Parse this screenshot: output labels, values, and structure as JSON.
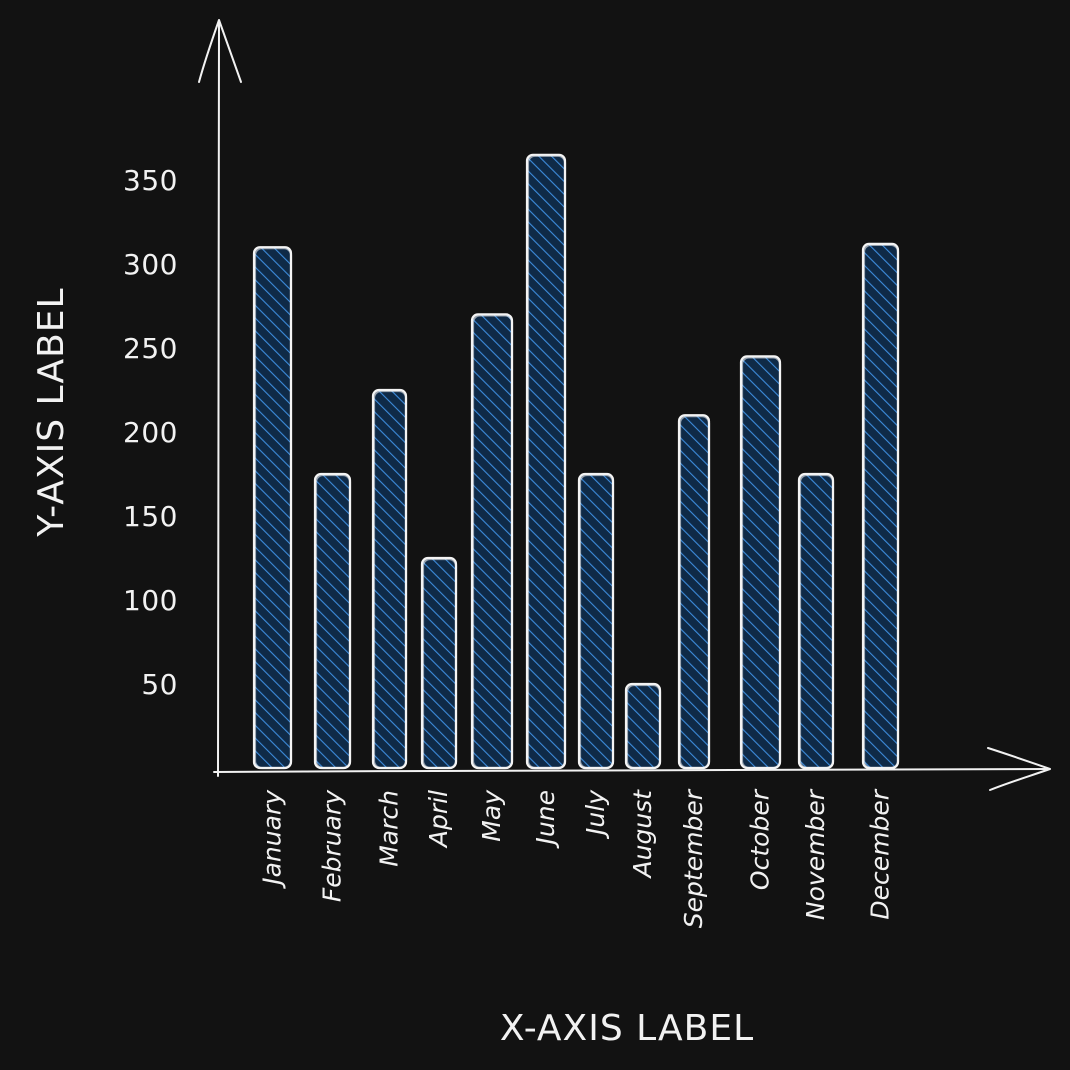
{
  "chart_data": {
    "type": "bar",
    "categories": [
      "January",
      "February",
      "March",
      "April",
      "May",
      "June",
      "July",
      "August",
      "September",
      "October",
      "November",
      "December"
    ],
    "values": [
      310,
      175,
      225,
      125,
      270,
      365,
      175,
      50,
      210,
      245,
      175,
      312
    ],
    "title": "",
    "xlabel": "X-AXIS LABEL",
    "ylabel": "Y-AXIS LABEL",
    "yticks": [
      50,
      100,
      150,
      200,
      250,
      300,
      350
    ],
    "ylim": [
      0,
      400
    ],
    "grid": false,
    "legend": "none",
    "colors": {
      "background": "#121212",
      "bar_hatch": "#3d8cdc",
      "bar_fill": "#0f2a47",
      "outline": "#f4f4f4",
      "text": "#f2f2f2"
    }
  }
}
